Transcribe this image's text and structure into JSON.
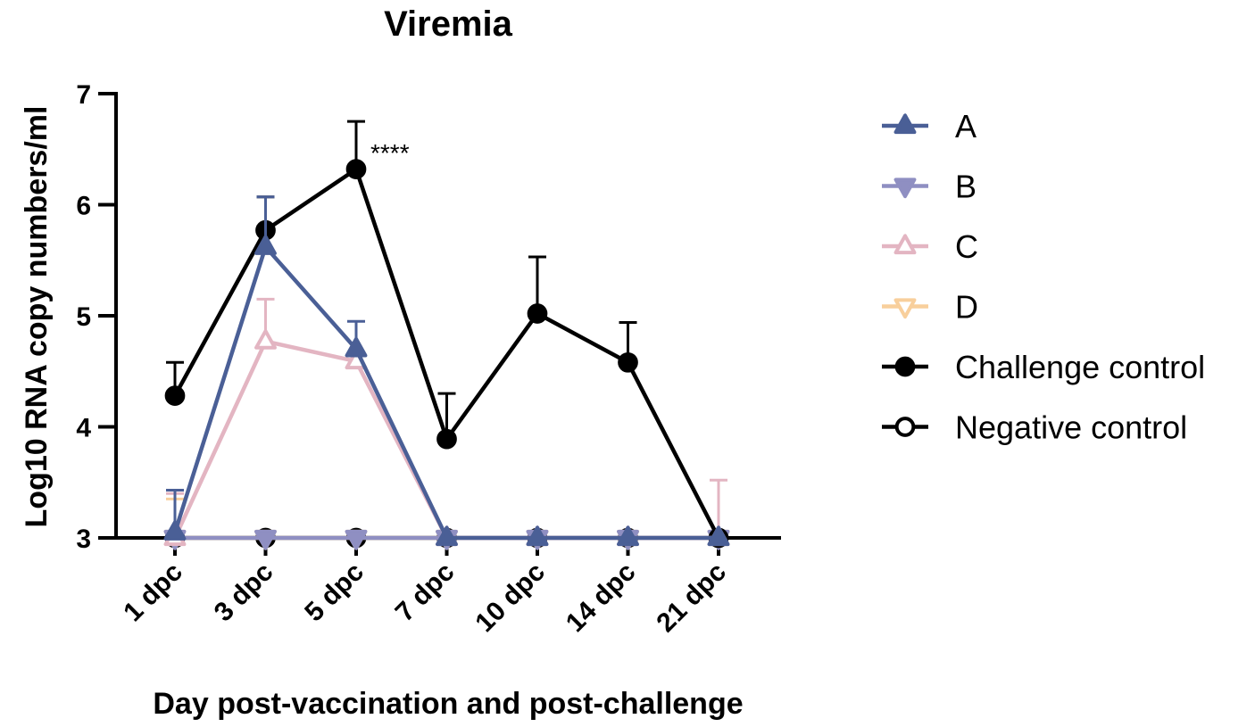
{
  "chart_data": {
    "type": "line",
    "title": "Viremia",
    "xlabel": "Day post-vaccination and post-challenge",
    "ylabel": "Log10 RNA copy numbers/ml",
    "categories": [
      "1 dpc",
      "3 dpc",
      "5 dpc",
      "7 dpc",
      "10 dpc",
      "14 dpc",
      "21 dpc"
    ],
    "ylim": [
      3,
      7
    ],
    "yticks": [
      3,
      4,
      5,
      6,
      7
    ],
    "legend_position": "right",
    "series": [
      {
        "name": "A",
        "marker": "triangle-up",
        "filled": true,
        "color": "#4a5f96",
        "values": [
          3.05,
          5.62,
          4.7,
          3.0,
          3.0,
          3.0,
          3.0
        ],
        "errors": [
          0.38,
          0.45,
          0.25,
          0,
          0,
          0,
          0
        ]
      },
      {
        "name": "B",
        "marker": "triangle-down",
        "filled": true,
        "color": "#8f8fc2",
        "values": [
          3.0,
          3.0,
          3.0,
          3.0,
          3.0,
          3.0,
          3.0
        ],
        "errors": [
          0,
          0,
          0,
          0,
          0,
          0,
          0
        ]
      },
      {
        "name": "C",
        "marker": "triangle-up",
        "filled": false,
        "color": "#e3b5c2",
        "values": [
          3.0,
          4.77,
          4.59,
          3.0,
          3.0,
          3.0,
          3.0
        ],
        "errors": [
          0.4,
          0.38,
          0,
          0,
          0,
          0,
          0.52
        ]
      },
      {
        "name": "D",
        "marker": "triangle-down",
        "filled": false,
        "color": "#f8cf9c",
        "values": [
          3.0,
          3.0,
          3.0,
          3.0,
          3.0,
          3.0,
          3.0
        ],
        "errors": [
          0.35,
          0,
          0,
          0,
          0,
          0,
          0
        ]
      },
      {
        "name": "Challenge control",
        "marker": "circle",
        "filled": true,
        "color": "#000000",
        "values": [
          4.28,
          5.77,
          6.32,
          3.89,
          5.02,
          4.58,
          3.0
        ],
        "errors": [
          0.3,
          0.3,
          0.43,
          0.41,
          0.51,
          0.36,
          0
        ]
      },
      {
        "name": "Negative control",
        "marker": "circle",
        "filled": false,
        "color": "#000000",
        "values": [
          3.0,
          3.0,
          3.0,
          3.0,
          3.0,
          3.0,
          3.0
        ],
        "errors": [
          0,
          0,
          0,
          0,
          0,
          0,
          0
        ]
      }
    ],
    "annotations": [
      {
        "text": "****",
        "category": "5 dpc",
        "y": 6.55
      }
    ]
  }
}
